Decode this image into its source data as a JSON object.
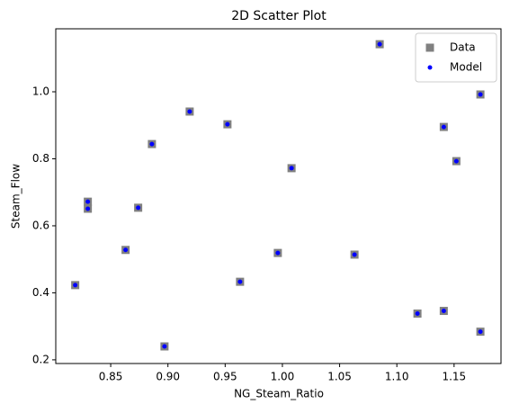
{
  "chart_data": {
    "type": "scatter",
    "title": "2D Scatter Plot",
    "x_label": "NG_Steam_Ratio",
    "y_label": "Steam_Flow",
    "x": [
      0.819,
      0.83,
      0.83,
      0.863,
      0.874,
      0.886,
      0.897,
      0.919,
      0.952,
      0.963,
      0.996,
      1.008,
      1.063,
      1.085,
      1.118,
      1.141,
      1.141,
      1.152,
      1.173,
      1.173
    ],
    "series": [
      {
        "name": "Data",
        "color": "#808080",
        "marker": "square",
        "values": [
          0.423,
          0.672,
          0.651,
          0.528,
          0.654,
          0.844,
          0.24,
          0.941,
          0.903,
          0.433,
          0.519,
          0.772,
          0.514,
          1.142,
          0.338,
          0.895,
          0.346,
          0.793,
          0.992,
          0.284
        ]
      },
      {
        "name": "Model",
        "color": "#0000ff",
        "marker": "circle",
        "values": [
          0.423,
          0.672,
          0.651,
          0.528,
          0.654,
          0.844,
          0.24,
          0.941,
          0.903,
          0.433,
          0.519,
          0.772,
          0.514,
          1.142,
          0.338,
          0.895,
          0.346,
          0.793,
          0.992,
          0.284
        ]
      }
    ],
    "xlim": [
      0.802,
      1.191
    ],
    "ylim": [
      0.189,
      1.188
    ],
    "xticks": [
      0.85,
      {
        "value": 0.9,
        "label": "0.90"
      },
      0.95,
      {
        "value": 1.0,
        "label": "1.00"
      },
      1.05,
      {
        "value": 1.1,
        "label": "1.10"
      },
      1.15
    ],
    "yticks": [
      0.2,
      0.4,
      0.6,
      0.8,
      {
        "value": 1.0,
        "label": "1.0"
      }
    ],
    "legend": "upper right"
  }
}
